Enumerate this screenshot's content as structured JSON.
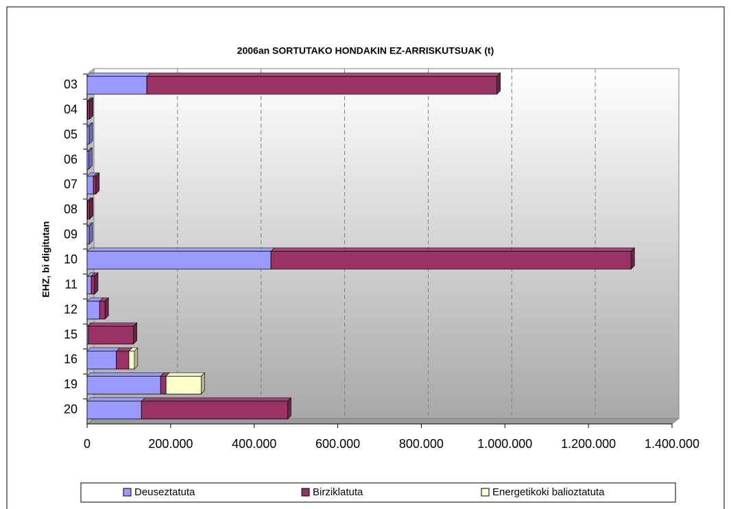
{
  "chart_data": {
    "type": "stacked_bar_horizontal",
    "title": "2006an SORTUTAKO HONDAKIN EZ-ARRISKUTSUAK (t)",
    "y_label": "EHZ, bi digitutan",
    "categories": [
      "03",
      "04",
      "05",
      "06",
      "07",
      "08",
      "09",
      "10",
      "11",
      "12",
      "15",
      "16",
      "19",
      "20"
    ],
    "series": [
      {
        "name": "Deuseztatuta",
        "color": "#9999ff",
        "values": [
          143000,
          1000,
          5000,
          4000,
          15000,
          1000,
          5000,
          440000,
          10000,
          30000,
          3000,
          70000,
          176000,
          130000
        ]
      },
      {
        "name": "Birziklatuta",
        "color": "#993366",
        "values": [
          838000,
          5000,
          0,
          0,
          6000,
          5000,
          0,
          862000,
          8000,
          13000,
          108000,
          30000,
          13000,
          350000
        ]
      },
      {
        "name": "Energetikoki balioztatuta",
        "color": "#ffffcc",
        "values": [
          0,
          0,
          0,
          0,
          0,
          0,
          0,
          0,
          0,
          0,
          0,
          13000,
          84000,
          0
        ]
      }
    ],
    "xlim": [
      0,
      1400000
    ],
    "xticks": [
      0,
      {
        "value": 200000,
        "label": "200.000"
      },
      {
        "value": 400000,
        "label": "400.000"
      },
      {
        "value": 600000,
        "label": "600.000"
      },
      {
        "value": 800000,
        "label": "800.000"
      },
      {
        "value": 1000000,
        "label": "1.000.000"
      },
      {
        "value": 1200000,
        "label": "1.200.000"
      },
      {
        "value": 1400000,
        "label": "1.400.000"
      }
    ],
    "grid": true,
    "legend": "bottom"
  }
}
